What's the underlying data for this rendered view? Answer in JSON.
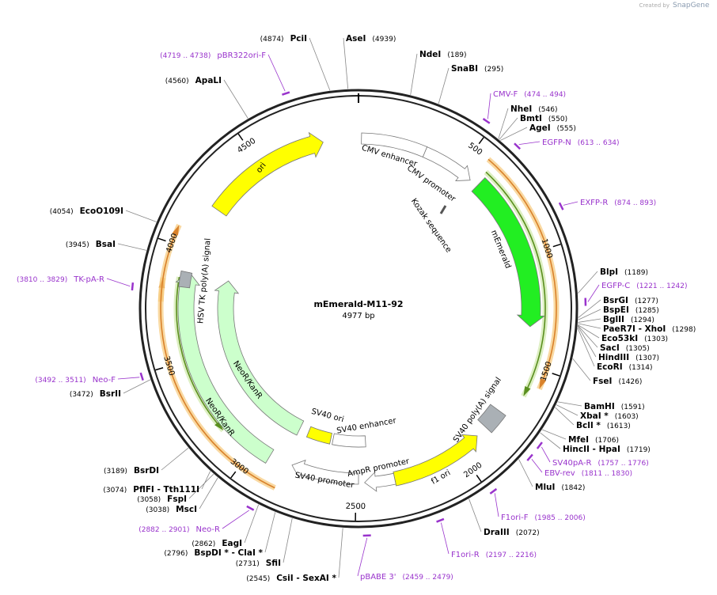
{
  "credit": {
    "prefix": "Created by",
    "brand": "SnapGene"
  },
  "map": {
    "name": "mEmerald-M11-92",
    "size": "4977 bp"
  },
  "ticks": [
    500,
    1000,
    1500,
    2000,
    2500,
    3000,
    3500,
    4000,
    4500
  ],
  "enzymes": [
    {
      "name": "AseI",
      "position": "(4939)"
    },
    {
      "name": "PciI",
      "position": "(4874)"
    },
    {
      "name": "NdeI",
      "position": "(189)"
    },
    {
      "name": "SnaBI",
      "position": "(295)"
    },
    {
      "name": "NheI",
      "position": "(546)"
    },
    {
      "name": "BmtI",
      "position": "(550)"
    },
    {
      "name": "AgeI",
      "position": "(555)"
    },
    {
      "name": "BlpI",
      "position": "(1189)"
    },
    {
      "name": "BsrGI",
      "position": "(1277)"
    },
    {
      "name": "BspEI",
      "position": "(1285)"
    },
    {
      "name": "BglII",
      "position": "(1294)"
    },
    {
      "name": "PaeR7I - XhoI",
      "position": "(1298)"
    },
    {
      "name": "Eco53kI",
      "position": "(1303)"
    },
    {
      "name": "SacI",
      "position": "(1305)"
    },
    {
      "name": "HindIII",
      "position": "(1307)"
    },
    {
      "name": "EcoRI",
      "position": "(1314)"
    },
    {
      "name": "FseI",
      "position": "(1426)"
    },
    {
      "name": "BamHI",
      "position": "(1591)"
    },
    {
      "name": "XbaI *",
      "position": "(1603)"
    },
    {
      "name": "BclI *",
      "position": "(1613)"
    },
    {
      "name": "MfeI",
      "position": "(1706)"
    },
    {
      "name": "HincII - HpaI",
      "position": "(1719)"
    },
    {
      "name": "MluI",
      "position": "(1842)"
    },
    {
      "name": "DraIII",
      "position": "(2072)"
    },
    {
      "name": "CsiI - SexAI *",
      "position": "(2545)"
    },
    {
      "name": "SfiI",
      "position": "(2731)"
    },
    {
      "name": "BspDI * - ClaI *",
      "position": "(2796)"
    },
    {
      "name": "EagI",
      "position": "(2862)"
    },
    {
      "name": "MscI",
      "position": "(3038)"
    },
    {
      "name": "FspI",
      "position": "(3058)"
    },
    {
      "name": "PflFI - Tth111I",
      "position": "(3074)"
    },
    {
      "name": "BsrDI",
      "position": "(3189)"
    },
    {
      "name": "BsrII",
      "position": "(3472)"
    },
    {
      "name": "BsaI",
      "position": "(3945)"
    },
    {
      "name": "EcoO109I",
      "position": "(4054)"
    },
    {
      "name": "ApaLI",
      "position": "(4560)"
    }
  ],
  "primers": [
    {
      "name": "CMV-F",
      "range": "(474 .. 494)"
    },
    {
      "name": "EGFP-N",
      "range": "(613 .. 634)"
    },
    {
      "name": "EXFP-R",
      "range": "(874 .. 893)"
    },
    {
      "name": "EGFP-C",
      "range": "(1221 .. 1242)"
    },
    {
      "name": "SV40pA-R",
      "range": "(1757 .. 1776)"
    },
    {
      "name": "EBV-rev",
      "range": "(1811 .. 1830)"
    },
    {
      "name": "F1ori-F",
      "range": "(1985 .. 2006)"
    },
    {
      "name": "F1ori-R",
      "range": "(2197 .. 2216)"
    },
    {
      "name": "pBABE 3'",
      "range": "(2459 .. 2479)"
    },
    {
      "name": "Neo-R",
      "range": "(2882 .. 2901)"
    },
    {
      "name": "Neo-F",
      "range": "(3492 .. 3511)"
    },
    {
      "name": "TK-pA-R",
      "range": "(3810 .. 3829)"
    },
    {
      "name": "pBR322ori-F",
      "range": "(4719 .. 4738)"
    }
  ],
  "features": [
    "ori",
    "CMV enhancer",
    "CMV promoter",
    "Kozak sequence",
    "mEmerald",
    "SV40 poly(A) signal",
    "f1 ori",
    "AmpR promoter",
    "SV40 promoter",
    "SV40 ori",
    "SV40 enhancer",
    "NeoR/KanR",
    "NeoR/KanR",
    "HSV TK poly(A) signal"
  ]
}
